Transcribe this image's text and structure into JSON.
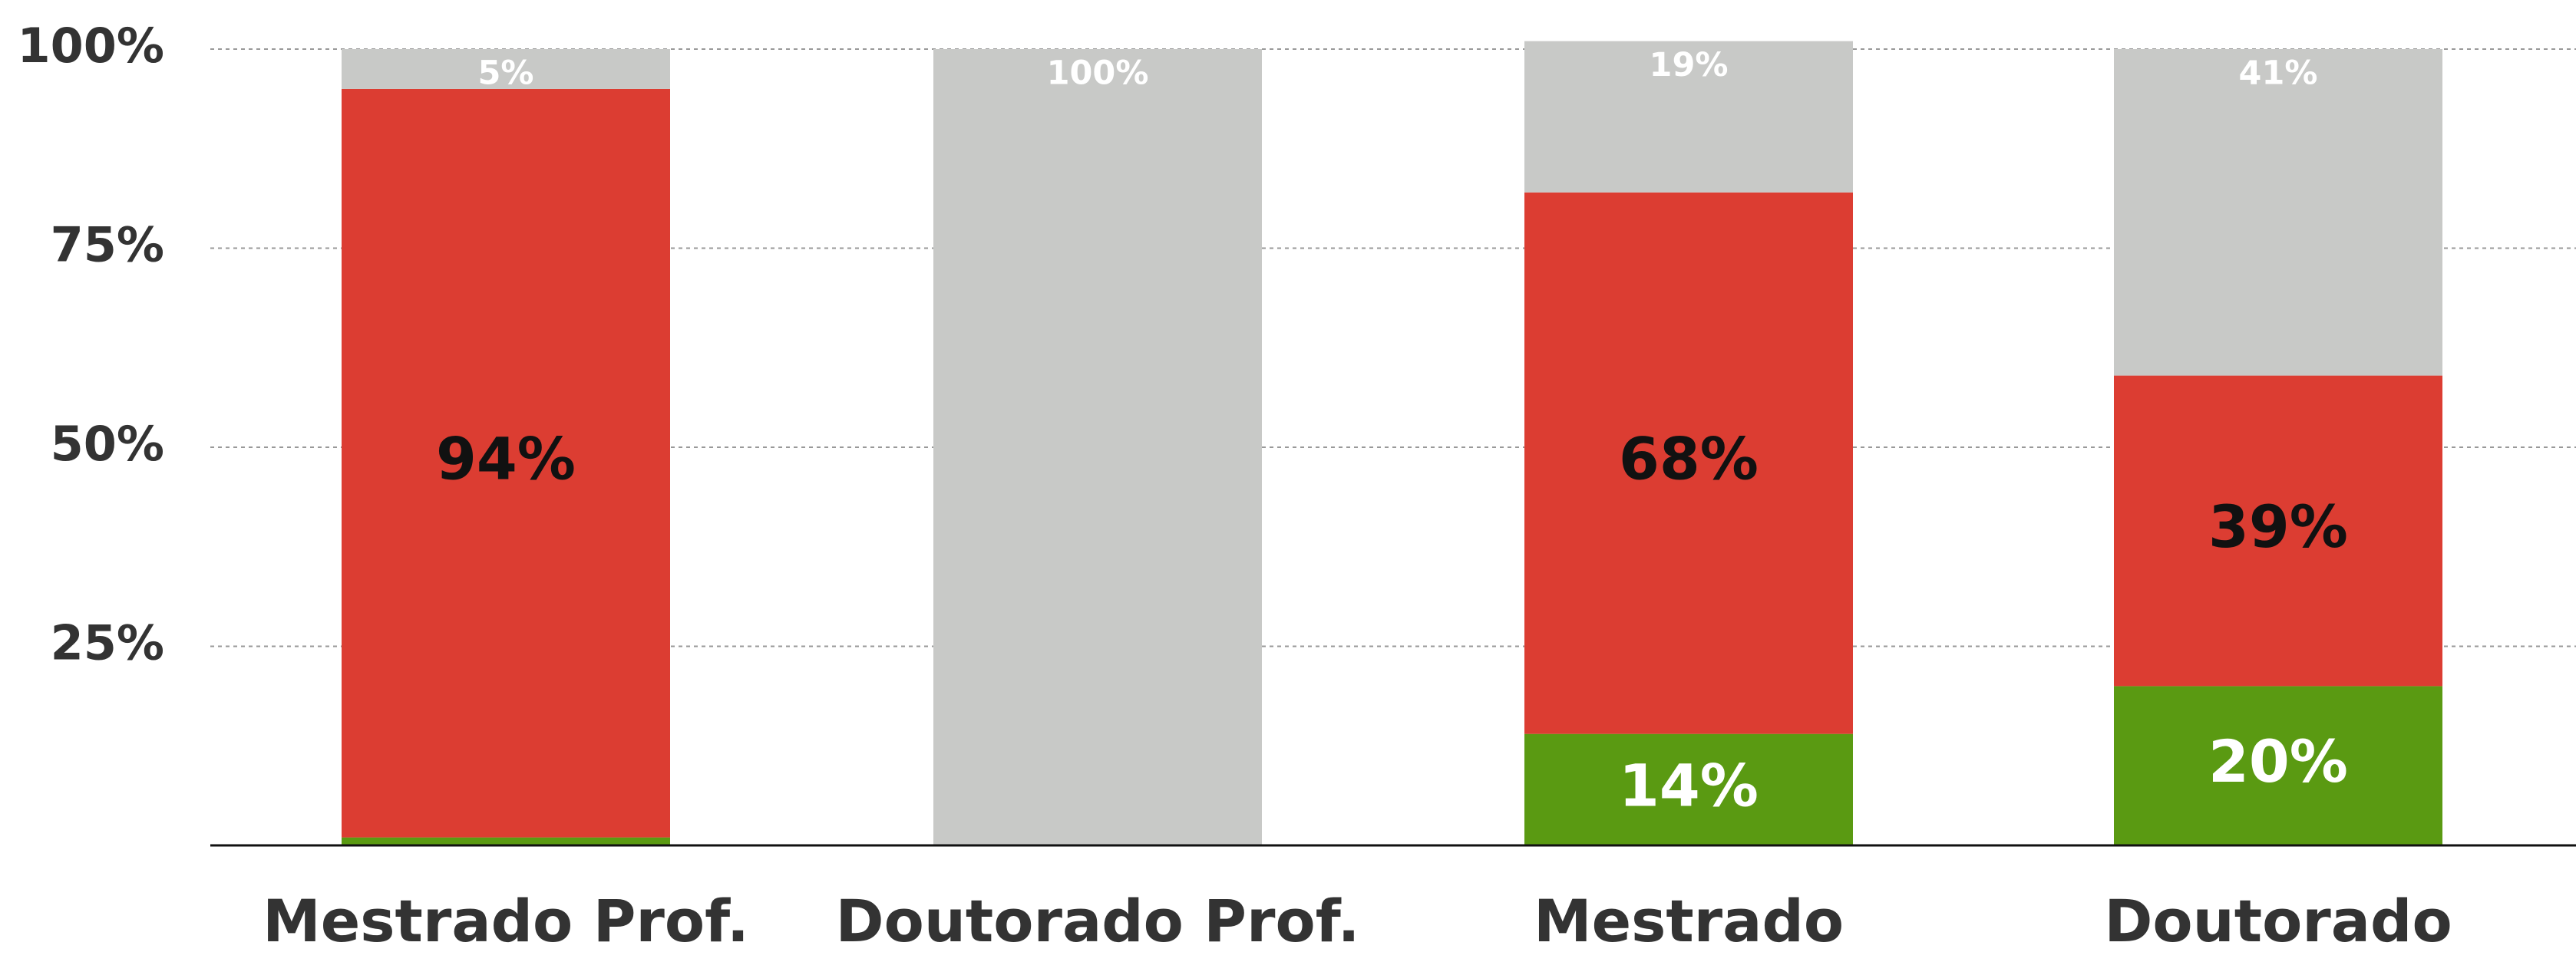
{
  "chart_data": {
    "type": "stacked_bar",
    "categories": [
      "Mestrado Prof.",
      "Doutorado Prof.",
      "Mestrado",
      "Doutorado"
    ],
    "series": [
      {
        "color": "#5a9a12",
        "values": [
          1,
          0,
          14,
          20
        ]
      },
      {
        "color": "#dc3d32",
        "values": [
          94,
          0,
          68,
          39
        ]
      },
      {
        "color": "#c8c9c7",
        "values": [
          5,
          100,
          19,
          41
        ]
      }
    ],
    "ylim": [
      0,
      100
    ],
    "yticks": [
      {
        "value": 25,
        "label": "25%"
      },
      {
        "value": 50,
        "label": "50%"
      },
      {
        "value": 75,
        "label": "75%"
      },
      {
        "value": 100,
        "label": "100%"
      }
    ],
    "value_labels": [
      [
        "1%",
        "",
        "14%",
        "20%"
      ],
      [
        "94%",
        "",
        "68%",
        "39%"
      ],
      [
        "5%",
        "100%",
        "19%",
        "41%"
      ]
    ],
    "grid": true
  }
}
